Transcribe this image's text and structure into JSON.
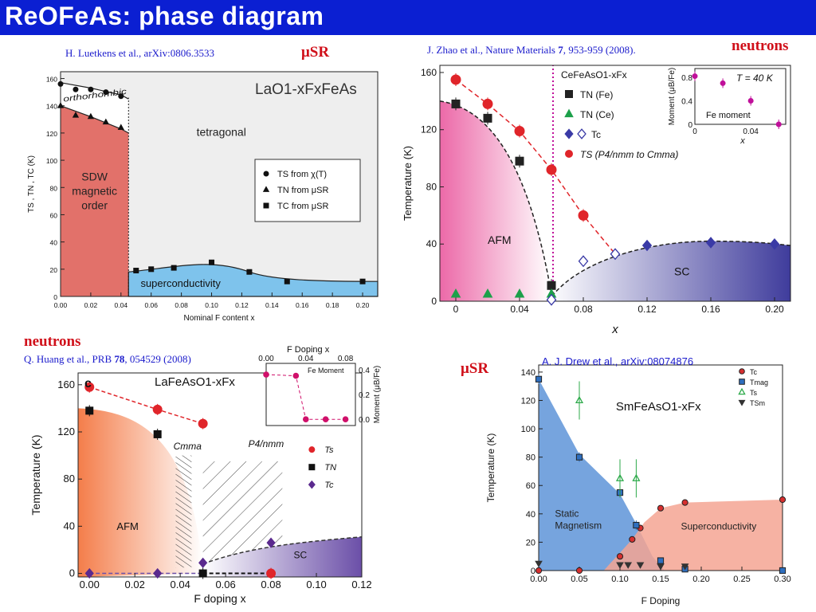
{
  "page": {
    "title": "ReOFeAs: phase diagram",
    "accent": "#0b1fd2"
  },
  "panels": {
    "tl": {
      "citation": "H. Luetkens et al., arXiv:0806.3533",
      "technique": "μSR"
    },
    "tr": {
      "citation": "J. Zhao et al., Nature Materials",
      "citation_vol": "7",
      "citation_rest": ", 953-959 (2008).",
      "technique": "neutrons"
    },
    "bl": {
      "citation": "Q. Huang et al., PRB",
      "citation_vol": "78",
      "citation_rest": ", 054529 (2008)",
      "technique": "neutrons"
    },
    "br": {
      "citation": "A. J. Drew et al., arXiv:08074876",
      "technique": "μSR"
    }
  },
  "chart_data": [
    {
      "id": "tl",
      "type": "scatter",
      "title": "LaO1-xFxFeAs",
      "xlabel": "Nominal F content x",
      "ylabel": "TS , TN , TC (K)",
      "xlim": [
        0,
        0.21
      ],
      "ylim": [
        0,
        165
      ],
      "xticks": [
        "0.00",
        "0.02",
        "0.04",
        "0.06",
        "0.08",
        "0.10",
        "0.12",
        "0.14",
        "0.16",
        "0.18",
        "0.20"
      ],
      "yticks": [
        "0",
        "20",
        "40",
        "60",
        "80",
        "100",
        "120",
        "140",
        "160"
      ],
      "regions": {
        "orthorhombic": "orthorhombic",
        "tetragonal": "tetragonal",
        "sdw": [
          "SDW",
          "magnetic",
          "order"
        ],
        "sc": "superconductivity"
      },
      "legend": [
        "TS from χ(T)",
        "TN from μSR",
        "TC from μSR"
      ],
      "series": [
        {
          "name": "TS from χ(T)",
          "marker": "circle",
          "x": [
            0,
            0.01,
            0.02,
            0.03,
            0.04
          ],
          "y": [
            156,
            152,
            152,
            150,
            147
          ]
        },
        {
          "name": "TN from μSR",
          "marker": "triangle",
          "x": [
            0,
            0.01,
            0.02,
            0.03,
            0.04
          ],
          "y": [
            140,
            133,
            132,
            128,
            124
          ]
        },
        {
          "name": "TC from μSR",
          "marker": "square",
          "x": [
            0.05,
            0.06,
            0.075,
            0.1,
            0.125,
            0.15,
            0.2
          ],
          "y": [
            19,
            20,
            21,
            25,
            18,
            11,
            11
          ]
        }
      ],
      "colors": {
        "sdw": "#e2716a",
        "sc": "#7ec3ec",
        "ortho": "#ffffff",
        "tetra": "#eeeeee"
      }
    },
    {
      "id": "tr",
      "type": "scatter",
      "title": "CeFeAsO1-xFx",
      "xlabel": "x",
      "ylabel": "Temperature (K)",
      "xlim": [
        -0.01,
        0.21
      ],
      "ylim": [
        0,
        165
      ],
      "xticks": [
        "0",
        "0.04",
        "0.08",
        "0.12",
        "0.16",
        "0.20"
      ],
      "yticks": [
        "0",
        "40",
        "80",
        "120",
        "160"
      ],
      "regions": {
        "afm": "AFM",
        "sc": "SC"
      },
      "legend": [
        "TN (Fe)",
        "TN (Ce)",
        "Tc",
        "TS (P4/nmm to Cmma)"
      ],
      "series": [
        {
          "name": "TN (Fe)",
          "marker": "square",
          "x": [
            0,
            0.02,
            0.04,
            0.06
          ],
          "y": [
            138,
            128,
            98,
            11
          ]
        },
        {
          "name": "TN (Ce)",
          "marker": "triangle",
          "x": [
            0,
            0.02,
            0.04,
            0.06
          ],
          "y": [
            5,
            5,
            5,
            5
          ]
        },
        {
          "name": "Tc",
          "marker": "diamond",
          "x": [
            0.06,
            0.08,
            0.1,
            0.12,
            0.16,
            0.2
          ],
          "y": [
            1,
            28,
            33,
            39,
            41,
            40
          ]
        },
        {
          "name": "TS (P4/nmm to Cmma)",
          "marker": "circle",
          "x": [
            0,
            0.02,
            0.04,
            0.06,
            0.08
          ],
          "y": [
            155,
            138,
            119,
            92,
            60
          ]
        }
      ],
      "inset": {
        "title": "T = 40 K",
        "label": "Fe moment",
        "ylabel": "Moment (μB/Fe)",
        "xlabel": "x",
        "xticks": [
          "0",
          "0.04"
        ],
        "yticks": [
          "0",
          "0.4",
          "0.8"
        ],
        "x": [
          0,
          0.02,
          0.04,
          0.06
        ],
        "y": [
          0.82,
          0.7,
          0.4,
          0.0
        ]
      },
      "colors": {
        "ts": "#e0252a",
        "tn": "#222222",
        "tnce": "#1ca04a",
        "tc": "#3a3aa6",
        "afm": "#ec69a8",
        "sc": "#3f3c9c",
        "line": "#c0109a"
      }
    },
    {
      "id": "bl",
      "type": "scatter",
      "title": "LaFeAsO1-xFx",
      "panel_letter": "c",
      "xlabel": "F doping x",
      "ylabel": "Temperature (K)",
      "xlim": [
        -0.005,
        0.12
      ],
      "ylim": [
        -3,
        170
      ],
      "xticks": [
        "0.00",
        "0.02",
        "0.04",
        "0.06",
        "0.08",
        "0.10",
        "0.12"
      ],
      "yticks": [
        "0",
        "40",
        "80",
        "120",
        "160"
      ],
      "regions": {
        "afm": "AFM",
        "cmma": "Cmma",
        "p4": "P4/nmm",
        "sc": "SC"
      },
      "legend": [
        "Ts",
        "TN",
        "Tc"
      ],
      "series": [
        {
          "name": "Ts",
          "marker": "circle",
          "x": [
            0,
            0.03,
            0.05,
            0.08
          ],
          "y": [
            158,
            139,
            127,
            0
          ]
        },
        {
          "name": "TN",
          "marker": "square",
          "x": [
            0,
            0.03,
            0.05
          ],
          "y": [
            138,
            118,
            0
          ]
        },
        {
          "name": "Tc",
          "marker": "diamond",
          "x": [
            0,
            0.03,
            0.05,
            0.08
          ],
          "y": [
            0,
            0,
            9,
            26
          ]
        }
      ],
      "inset": {
        "title": "F Doping x",
        "label": "Fe Moment",
        "ylabel": "Moment (μB/Fe)",
        "xticks": [
          "0.00",
          "0.04",
          "0.08"
        ],
        "yticks": [
          "0.0",
          "0.2",
          "0.4"
        ],
        "x": [
          0,
          0.03,
          0.04,
          0.06,
          0.08
        ],
        "y": [
          0.36,
          0.35,
          0.0,
          0.0,
          0.0
        ]
      },
      "colors": {
        "ts": "#e0252a",
        "tn": "#111111",
        "tc": "#5b2a8e",
        "afm": "#f47d4a",
        "sc": "#6b4fa8"
      }
    },
    {
      "id": "br",
      "type": "scatter",
      "title": "SmFeAsO1-xFx",
      "xlabel": "F Doping",
      "ylabel": "Temperature (K)",
      "xlim": [
        0,
        0.3
      ],
      "ylim": [
        0,
        145
      ],
      "xticks": [
        "0.00",
        "0.05",
        "0.10",
        "0.15",
        "0.20",
        "0.25",
        "0.30"
      ],
      "yticks": [
        "0",
        "20",
        "40",
        "60",
        "80",
        "100",
        "120",
        "140"
      ],
      "regions": {
        "mag": [
          "Static",
          "Magnetism"
        ],
        "sc": "Superconductivity"
      },
      "legend": [
        "Tc",
        "Tmag",
        "Ts",
        "TSm"
      ],
      "series": [
        {
          "name": "Tc",
          "marker": "circle",
          "x": [
            0,
            0.05,
            0.1,
            0.115,
            0.125,
            0.15,
            0.18,
            0.3
          ],
          "y": [
            0,
            0,
            10,
            22,
            30,
            44,
            48,
            50
          ]
        },
        {
          "name": "Tmag",
          "marker": "square",
          "x": [
            0,
            0.05,
            0.1,
            0.12,
            0.15,
            0.18,
            0.3
          ],
          "y": [
            135,
            80,
            55,
            32,
            7,
            1,
            0
          ]
        },
        {
          "name": "Ts",
          "marker": "open-triangle",
          "x": [
            0.05,
            0.1,
            0.12
          ],
          "y": [
            120,
            65,
            65
          ]
        },
        {
          "name": "TSm",
          "marker": "down-triangle",
          "x": [
            0,
            0.1,
            0.11,
            0.125,
            0.15,
            0.18
          ],
          "y": [
            5,
            4,
            4,
            4,
            3,
            3
          ]
        }
      ],
      "colors": {
        "mag": "#6f9fdc",
        "sc": "#f5a593",
        "tc": "#d62f2f",
        "tmag": "#2f6fbf",
        "ts": "#2daa4a",
        "tsm": "#333333"
      }
    }
  ]
}
